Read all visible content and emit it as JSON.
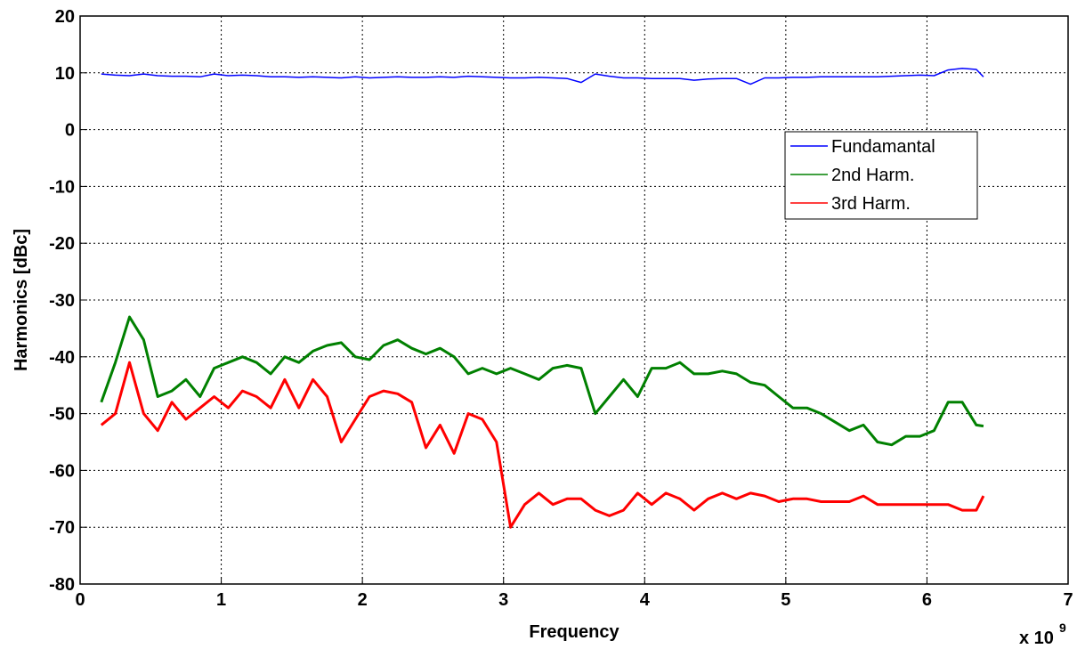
{
  "chart_data": {
    "type": "line",
    "xlabel": "Frequency",
    "ylabel": "Harmonics [dBc]",
    "x_multiplier": {
      "base": "x 10",
      "exponent": "9"
    },
    "xlim": [
      0,
      7
    ],
    "xticks": [
      0,
      1,
      2,
      3,
      4,
      5,
      6,
      7
    ],
    "ylim": [
      -80,
      20
    ],
    "yticks": [
      -80,
      -70,
      -60,
      -50,
      -40,
      -30,
      -20,
      -10,
      0,
      10,
      20
    ],
    "grid": true,
    "legend": "upper right",
    "x": [
      0.15,
      0.25,
      0.35,
      0.45,
      0.55,
      0.65,
      0.75,
      0.85,
      0.95,
      1.05,
      1.15,
      1.25,
      1.35,
      1.45,
      1.55,
      1.65,
      1.75,
      1.85,
      1.95,
      2.05,
      2.15,
      2.25,
      2.35,
      2.45,
      2.55,
      2.65,
      2.75,
      2.85,
      2.95,
      3.05,
      3.15,
      3.25,
      3.35,
      3.45,
      3.55,
      3.65,
      3.75,
      3.85,
      3.95,
      4.05,
      4.15,
      4.25,
      4.35,
      4.45,
      4.55,
      4.65,
      4.75,
      4.85,
      4.95,
      5.05,
      5.15,
      5.25,
      5.35,
      5.45,
      5.55,
      5.65,
      5.75,
      5.85,
      5.95,
      6.05,
      6.15,
      6.25,
      6.35,
      6.4
    ],
    "series": [
      {
        "name": "Fundamantal",
        "color": "#0000ff",
        "width": 1.5,
        "values": [
          9.8,
          9.6,
          9.5,
          9.8,
          9.5,
          9.4,
          9.4,
          9.3,
          9.8,
          9.5,
          9.6,
          9.5,
          9.3,
          9.3,
          9.2,
          9.3,
          9.2,
          9.1,
          9.3,
          9.1,
          9.2,
          9.3,
          9.2,
          9.2,
          9.3,
          9.2,
          9.4,
          9.3,
          9.2,
          9.1,
          9.1,
          9.2,
          9.1,
          9.0,
          8.3,
          9.8,
          9.4,
          9.1,
          9.1,
          9.0,
          9.0,
          9.0,
          8.7,
          8.9,
          9.0,
          9.0,
          8.0,
          9.1,
          9.1,
          9.2,
          9.2,
          9.3,
          9.3,
          9.3,
          9.3,
          9.3,
          9.4,
          9.5,
          9.6,
          9.5,
          10.5,
          10.8,
          10.6,
          9.3
        ]
      },
      {
        "name": "2nd Harm.",
        "color": "#008000",
        "width": 3,
        "values": [
          -48,
          -41,
          -33,
          -37,
          -47,
          -46,
          -44,
          -47,
          -42,
          -41,
          -40,
          -41,
          -43,
          -40,
          -41,
          -39,
          -38,
          -37.5,
          -40,
          -40.5,
          -38,
          -37,
          -38.5,
          -39.5,
          -38.5,
          -40,
          -43,
          -42,
          -43,
          -42,
          -43,
          -44,
          -42,
          -41.5,
          -42,
          -50,
          -47,
          -44,
          -47,
          -42,
          -42,
          -41,
          -43,
          -43,
          -42.5,
          -43,
          -44.5,
          -45,
          -47,
          -49,
          -49,
          -50,
          -51.5,
          -53,
          -52,
          -55,
          -55.5,
          -54,
          -54,
          -53,
          -48,
          -48,
          -52,
          -52.2
        ]
      },
      {
        "name": "3rd Harm.",
        "color": "#ff0000",
        "width": 3,
        "values": [
          -52,
          -50,
          -41,
          -50,
          -53,
          -48,
          -51,
          -49,
          -47,
          -49,
          -46,
          -47,
          -49,
          -44,
          -49,
          -44,
          -47,
          -55,
          -51,
          -47,
          -46,
          -46.5,
          -48,
          -56,
          -52,
          -57,
          -50,
          -51,
          -55,
          -70,
          -66,
          -64,
          -66,
          -65,
          -65,
          -67,
          -68,
          -67,
          -64,
          -66,
          -64,
          -65,
          -67,
          -65,
          -64,
          -65,
          -64,
          -64.5,
          -65.5,
          -65,
          -65,
          -65.5,
          -65.5,
          -65.5,
          -64.5,
          -66,
          -66,
          -66,
          -66,
          -66,
          -66,
          -67,
          -67,
          -64.5
        ]
      }
    ]
  }
}
